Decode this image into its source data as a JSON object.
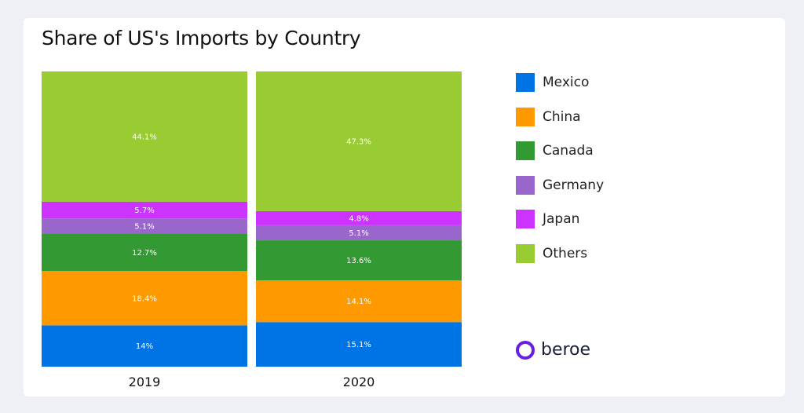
{
  "chart_data": {
    "type": "bar",
    "stacked": true,
    "title": "Share of US's Imports by Country",
    "categories": [
      "2019",
      "2020"
    ],
    "series": [
      {
        "name": "Mexico",
        "color": "#0074e4",
        "values": [
          14,
          15.1
        ],
        "labels": [
          "14%",
          "15.1%"
        ]
      },
      {
        "name": "China",
        "color": "#ff9900",
        "values": [
          18.4,
          14.1
        ],
        "labels": [
          "18.4%",
          "14.1%"
        ]
      },
      {
        "name": "Canada",
        "color": "#339933",
        "values": [
          12.7,
          13.6
        ],
        "labels": [
          "12.7%",
          "13.6%"
        ]
      },
      {
        "name": "Germany",
        "color": "#9966cc",
        "values": [
          5.1,
          5.1
        ],
        "labels": [
          "5.1%",
          "5.1%"
        ]
      },
      {
        "name": "Japan",
        "color": "#cc33ff",
        "values": [
          5.7,
          4.8
        ],
        "labels": [
          "5.7%",
          "4.8%"
        ]
      },
      {
        "name": "Others",
        "color": "#99cc33",
        "values": [
          44.1,
          47.3
        ],
        "labels": [
          "44.1%",
          "47.3%"
        ]
      }
    ],
    "ylim": [
      0,
      100
    ],
    "grid": false,
    "legend_position": "right"
  },
  "logo": {
    "text": "beroe"
  }
}
